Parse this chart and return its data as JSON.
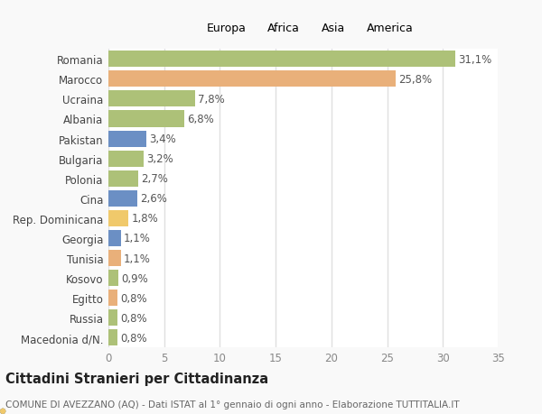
{
  "countries": [
    "Romania",
    "Marocco",
    "Ucraina",
    "Albania",
    "Pakistan",
    "Bulgaria",
    "Polonia",
    "Cina",
    "Rep. Dominicana",
    "Georgia",
    "Tunisia",
    "Kosovo",
    "Egitto",
    "Russia",
    "Macedonia d/N."
  ],
  "values": [
    31.1,
    25.8,
    7.8,
    6.8,
    3.4,
    3.2,
    2.7,
    2.6,
    1.8,
    1.1,
    1.1,
    0.9,
    0.8,
    0.8,
    0.8
  ],
  "labels": [
    "31,1%",
    "25,8%",
    "7,8%",
    "6,8%",
    "3,4%",
    "3,2%",
    "2,7%",
    "2,6%",
    "1,8%",
    "1,1%",
    "1,1%",
    "0,9%",
    "0,8%",
    "0,8%",
    "0,8%"
  ],
  "continents": [
    "Europa",
    "Africa",
    "Europa",
    "Europa",
    "Asia",
    "Europa",
    "Europa",
    "Asia",
    "America",
    "Asia",
    "Africa",
    "Europa",
    "Africa",
    "Europa",
    "Europa"
  ],
  "continent_colors": {
    "Europa": "#adc178",
    "Africa": "#e9b07a",
    "Asia": "#6b8fc4",
    "America": "#f0c96b"
  },
  "legend_order": [
    "Europa",
    "Africa",
    "Asia",
    "America"
  ],
  "title": "Cittadini Stranieri per Cittadinanza",
  "subtitle": "COMUNE DI AVEZZANO (AQ) - Dati ISTAT al 1° gennaio di ogni anno - Elaborazione TUTTITALIA.IT",
  "xlim": [
    0,
    35
  ],
  "xticks": [
    0,
    5,
    10,
    15,
    20,
    25,
    30,
    35
  ],
  "plot_bg_color": "#ffffff",
  "fig_bg_color": "#f9f9f9",
  "grid_color": "#e0e0e0",
  "bar_height": 0.82,
  "label_fontsize": 8.5,
  "tick_fontsize": 8.5,
  "title_fontsize": 10.5,
  "subtitle_fontsize": 7.5
}
